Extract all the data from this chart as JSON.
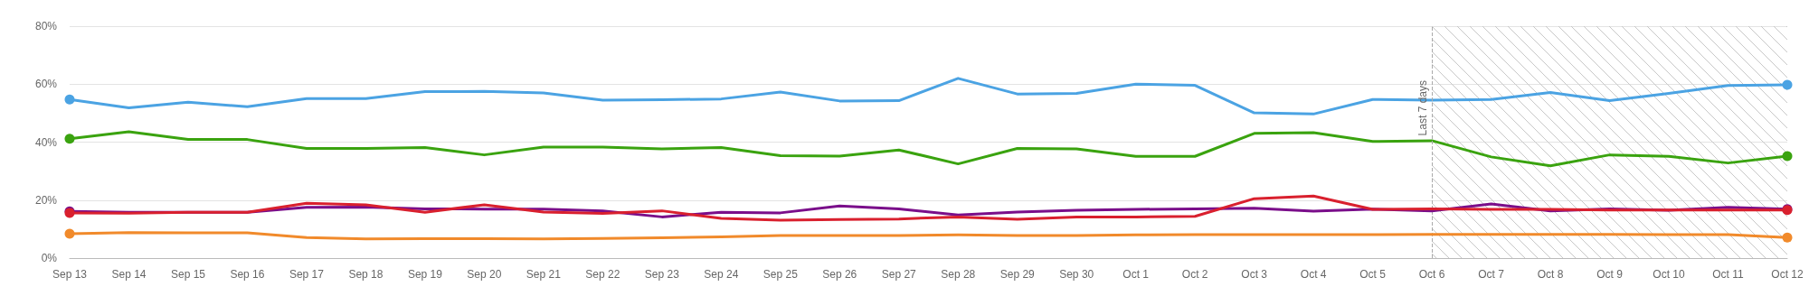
{
  "chart_data": {
    "type": "line",
    "categories": [
      "Sep 13",
      "Sep 14",
      "Sep 15",
      "Sep 16",
      "Sep 17",
      "Sep 18",
      "Sep 19",
      "Sep 20",
      "Sep 21",
      "Sep 22",
      "Sep 23",
      "Sep 24",
      "Sep 25",
      "Sep 26",
      "Sep 27",
      "Sep 28",
      "Sep 29",
      "Sep 30",
      "Oct 1",
      "Oct 2",
      "Oct 3",
      "Oct 4",
      "Oct 5",
      "Oct 6",
      "Oct 7",
      "Oct 8",
      "Oct 9",
      "Oct 10",
      "Oct 11",
      "Oct 12"
    ],
    "series": [
      {
        "color": "#4ba3e3",
        "values": [
          54.7,
          51.8,
          53.8,
          52.2,
          55,
          55,
          57.4,
          57.5,
          57,
          54.5,
          54.6,
          54.9,
          57.3,
          54.2,
          54.3,
          62,
          56.6,
          56.8,
          60,
          59.6,
          50.1,
          49.7,
          54.7,
          54.5,
          54.7,
          57.1,
          54.3,
          56.8,
          59.5,
          59.8
        ]
      },
      {
        "color": "#3aa30f",
        "values": [
          41.2,
          43.6,
          40.9,
          40.9,
          37.8,
          37.8,
          38.1,
          35.6,
          38.3,
          38.3,
          37.7,
          38.1,
          35.3,
          35.2,
          37.3,
          32.5,
          37.8,
          37.7,
          35.1,
          35.1,
          43,
          43.3,
          40.2,
          40.5,
          34.9,
          31.8,
          35.6,
          35.1,
          32.8,
          35.2
        ]
      },
      {
        "color": "#7a0e8a",
        "values": [
          16.1,
          15.8,
          15.8,
          15.8,
          17.5,
          17.6,
          17,
          16.9,
          16.9,
          16.3,
          14.2,
          15.8,
          15.6,
          18,
          17,
          14.9,
          15.9,
          16.5,
          16.8,
          17,
          17.2,
          16.2,
          16.9,
          16.3,
          18.7,
          16.3,
          17,
          16.5,
          17.5,
          16.9
        ]
      },
      {
        "color": "#d9202e",
        "values": [
          15.6,
          15.5,
          15.8,
          15.8,
          18.9,
          18.4,
          15.8,
          18.4,
          15.9,
          15.4,
          16.3,
          13.7,
          13.1,
          13.3,
          13.5,
          14.2,
          13.4,
          14.2,
          14.2,
          14.4,
          20.5,
          21.4,
          16.8,
          17,
          16.8,
          16.8,
          16.6,
          16.6,
          16.6,
          16.6
        ]
      },
      {
        "color": "#f18a2b",
        "values": [
          8.4,
          8.8,
          8.7,
          8.7,
          7.1,
          6.6,
          6.7,
          6.7,
          6.6,
          6.8,
          7,
          7.3,
          7.8,
          7.8,
          7.8,
          8,
          7.8,
          7.8,
          8,
          8.1,
          8.1,
          8.1,
          8.1,
          8.2,
          8.2,
          8.2,
          8.2,
          8.1,
          8.1,
          7.1
        ]
      }
    ],
    "ylim": [
      0,
      80
    ],
    "yticks": [
      {
        "value": 0,
        "label": "0%"
      },
      {
        "value": 20,
        "label": "20%"
      },
      {
        "value": 40,
        "label": "40%"
      },
      {
        "value": 60,
        "label": "60%"
      },
      {
        "value": 80,
        "label": "80%"
      }
    ],
    "bands": [
      {
        "axis": "x",
        "from": "Oct 6",
        "to": "Oct 12",
        "color": "#c8c8c8"
      }
    ],
    "ref_lines": [
      {
        "axis": "x",
        "value": "Oct 6",
        "label": "Last 7 days",
        "color": "#aaaaaa",
        "line_style": "dashed"
      }
    ],
    "grid": "y",
    "line_style": "solid"
  }
}
